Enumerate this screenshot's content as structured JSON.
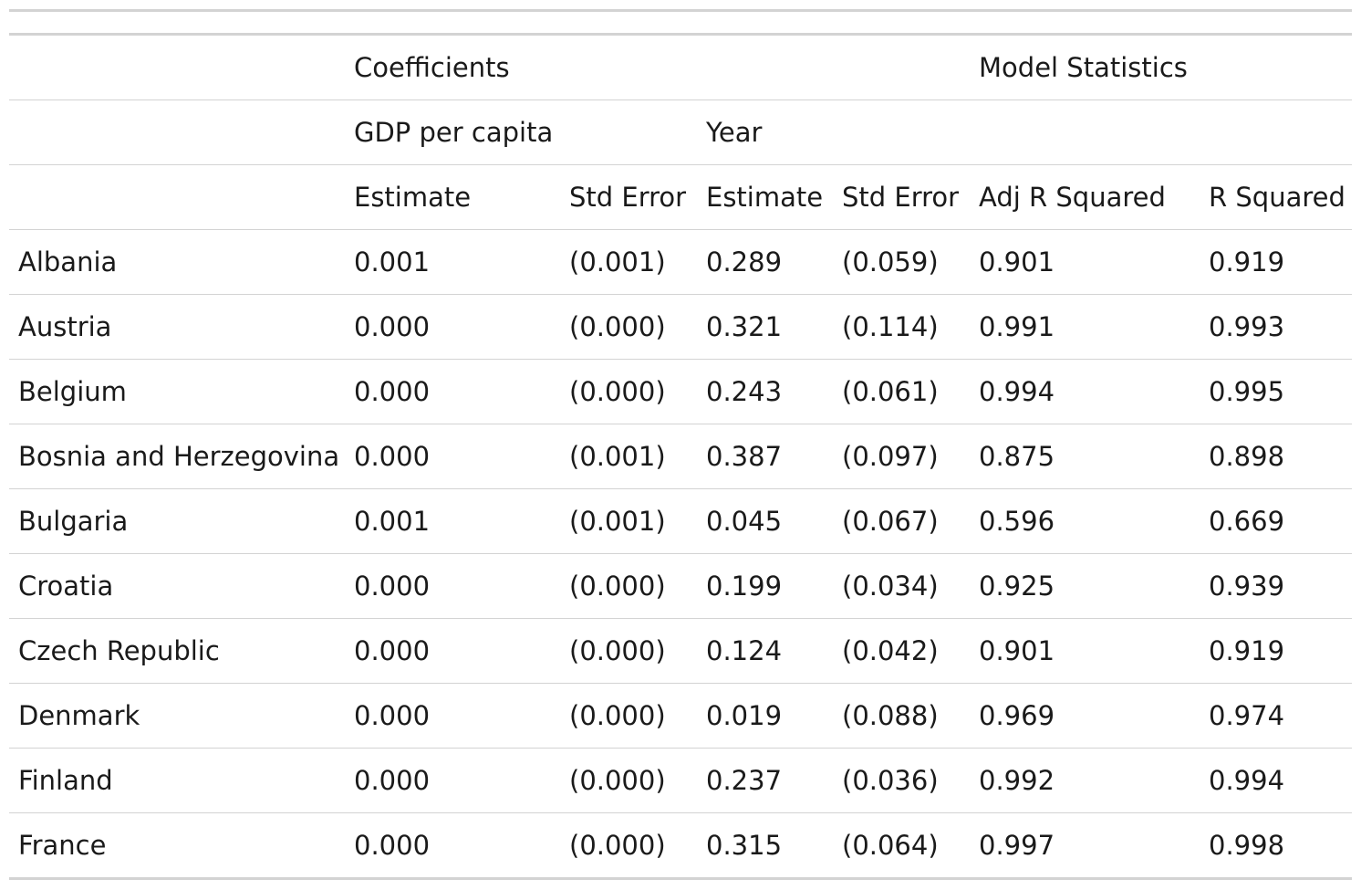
{
  "table": {
    "header_groups": {
      "coefficients": "Coefficients",
      "model_statistics": "Model Statistics"
    },
    "header_subgroups": {
      "gdp": "GDP per capita",
      "year": "Year"
    },
    "columns": [
      "Estimate",
      "Std Error",
      "Estimate",
      "Std Error",
      "Adj R Squared",
      "R Squared"
    ],
    "rows": [
      {
        "country": "Albania",
        "values": [
          "0.001",
          "(0.001)",
          "0.289",
          "(0.059)",
          "0.901",
          "0.919"
        ]
      },
      {
        "country": "Austria",
        "values": [
          "0.000",
          "(0.000)",
          "0.321",
          "(0.114)",
          "0.991",
          "0.993"
        ]
      },
      {
        "country": "Belgium",
        "values": [
          "0.000",
          "(0.000)",
          "0.243",
          "(0.061)",
          "0.994",
          "0.995"
        ]
      },
      {
        "country": "Bosnia and Herzegovina",
        "values": [
          "0.000",
          "(0.001)",
          "0.387",
          "(0.097)",
          "0.875",
          "0.898"
        ]
      },
      {
        "country": "Bulgaria",
        "values": [
          "0.001",
          "(0.001)",
          "0.045",
          "(0.067)",
          "0.596",
          "0.669"
        ]
      },
      {
        "country": "Croatia",
        "values": [
          "0.000",
          "(0.000)",
          "0.199",
          "(0.034)",
          "0.925",
          "0.939"
        ]
      },
      {
        "country": "Czech Republic",
        "values": [
          "0.000",
          "(0.000)",
          "0.124",
          "(0.042)",
          "0.901",
          "0.919"
        ]
      },
      {
        "country": "Denmark",
        "values": [
          "0.000",
          "(0.000)",
          "0.019",
          "(0.088)",
          "0.969",
          "0.974"
        ]
      },
      {
        "country": "Finland",
        "values": [
          "0.000",
          "(0.000)",
          "0.237",
          "(0.036)",
          "0.992",
          "0.994"
        ]
      },
      {
        "country": "France",
        "values": [
          "0.000",
          "(0.000)",
          "0.315",
          "(0.064)",
          "0.997",
          "0.998"
        ]
      }
    ]
  },
  "colors": {
    "rule": "#d3d3d3",
    "text": "#1a1a1a"
  }
}
